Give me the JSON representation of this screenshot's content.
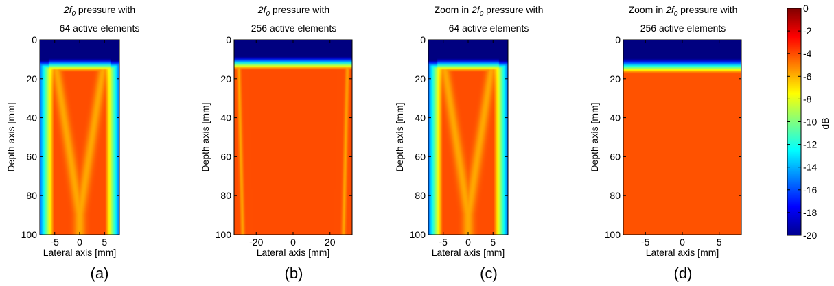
{
  "chart_data": [
    {
      "type": "heatmap",
      "title": [
        "2f0 pressure with",
        "64 active elements"
      ],
      "title_parts": [
        {
          "text": "2f",
          "italic": true
        },
        {
          "text": "0",
          "italic": true,
          "sub": true
        },
        {
          "text": " pressure with"
        }
      ],
      "title_line2": "64 active elements",
      "xlabel": "Lateral axis [mm]",
      "ylabel": "Depth axis [mm]",
      "xlim": [
        -8,
        8
      ],
      "ylim": [
        0,
        100
      ],
      "xticks": [
        -5,
        0,
        5
      ],
      "yticks": [
        0,
        20,
        40,
        60,
        80,
        100
      ],
      "caption": "(a)",
      "pattern": "v-beams-64",
      "aperture_edge_mm": 6.3,
      "focus_depth_mm": 13
    },
    {
      "type": "heatmap",
      "title_parts": [
        {
          "text": "2f",
          "italic": true
        },
        {
          "text": "0",
          "italic": true,
          "sub": true
        },
        {
          "text": " pressure with"
        }
      ],
      "title_line2": "256 active elements",
      "xlabel": "Lateral axis [mm]",
      "ylabel": "Depth axis [mm]",
      "xlim": [
        -32,
        32
      ],
      "ylim": [
        0,
        100
      ],
      "xticks": [
        -20,
        0,
        20
      ],
      "yticks": [
        0,
        20,
        40,
        60,
        80,
        100
      ],
      "caption": "(b)",
      "pattern": "edge-beams-256",
      "aperture_edge_mm": 30,
      "focus_depth_mm": 12
    },
    {
      "type": "heatmap",
      "title_parts": [
        {
          "text": "Zoom in "
        },
        {
          "text": "2f",
          "italic": true
        },
        {
          "text": "0",
          "italic": true,
          "sub": true
        },
        {
          "text": " pressure with"
        }
      ],
      "title_line2": "64 active elements",
      "xlabel": "Lateral axis [mm]",
      "ylabel": "Depth axis [mm]",
      "xlim": [
        -8,
        8
      ],
      "ylim": [
        0,
        100
      ],
      "xticks": [
        -5,
        0,
        5
      ],
      "yticks": [
        0,
        20,
        40,
        60,
        80,
        100
      ],
      "caption": "(c)",
      "pattern": "v-beams-64",
      "aperture_edge_mm": 6.3,
      "focus_depth_mm": 13
    },
    {
      "type": "heatmap",
      "title_parts": [
        {
          "text": "Zoom in "
        },
        {
          "text": "2f",
          "italic": true
        },
        {
          "text": "0",
          "italic": true,
          "sub": true
        },
        {
          "text": " pressure with"
        }
      ],
      "title_line2": "256 active elements",
      "xlabel": "Lateral axis [mm]",
      "ylabel": "Depth axis [mm]",
      "xlim": [
        -8,
        8
      ],
      "ylim": [
        0,
        100
      ],
      "xticks": [
        -5,
        0,
        5
      ],
      "yticks": [
        0,
        20,
        40,
        60,
        80,
        100
      ],
      "caption": "(d)",
      "pattern": "uniform-256",
      "focus_depth_mm": 13
    }
  ],
  "colorbar": {
    "label": "dB",
    "range": [
      -20,
      0
    ],
    "ticks": [
      0,
      -2,
      -4,
      -6,
      -8,
      -10,
      -12,
      -14,
      -16,
      -18,
      -20
    ],
    "colormap": "jet"
  }
}
